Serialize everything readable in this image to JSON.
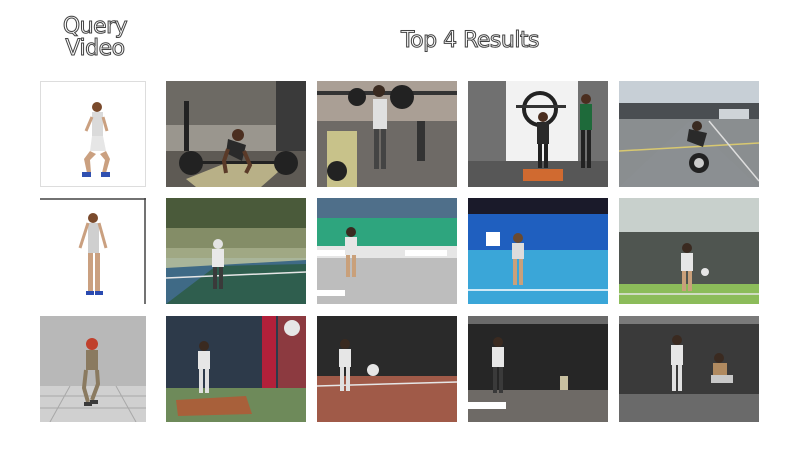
{
  "headers": {
    "query_line1": "Query",
    "query_line2": "Video",
    "results": "Top 4 Results"
  },
  "rows": [
    {
      "query": {
        "subject": "person squatting",
        "bg": "#ffffff"
      },
      "results": [
        {
          "scene": "gym-deadlift"
        },
        {
          "scene": "gym-clean"
        },
        {
          "scene": "gym-overhead"
        },
        {
          "scene": "outdoor-court-lift"
        }
      ]
    },
    {
      "query": {
        "subject": "person standing",
        "bg": "#ffffff"
      },
      "results": [
        {
          "scene": "tennis-court-outdoor"
        },
        {
          "scene": "tennis-indoor-green"
        },
        {
          "scene": "tennis-blue-court"
        },
        {
          "scene": "tennis-outdoor-green"
        }
      ]
    },
    {
      "query": {
        "subject": "avatar batting stance",
        "bg": "#b8b8b8"
      },
      "results": [
        {
          "scene": "batting-cage-mat"
        },
        {
          "scene": "indoor-clay"
        },
        {
          "scene": "batting-net"
        },
        {
          "scene": "cage-seated"
        }
      ]
    }
  ]
}
